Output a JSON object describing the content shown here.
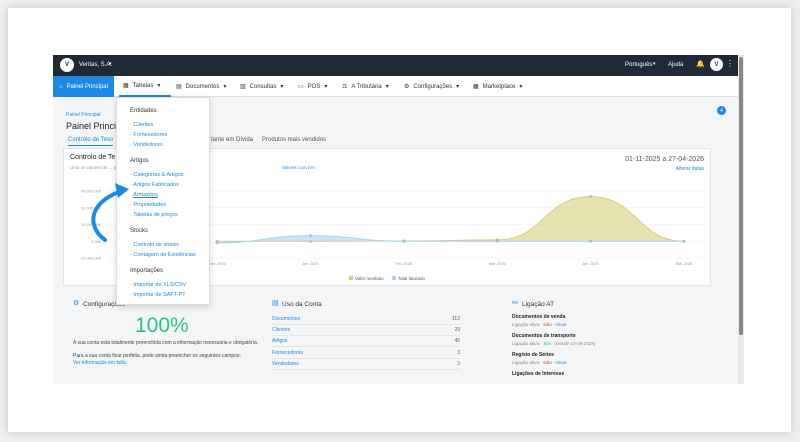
{
  "topbar": {
    "company": "Veritas, S.A.",
    "language": "Português",
    "help": "Ajuda"
  },
  "menu": {
    "items": [
      {
        "label": "Painel Principal"
      },
      {
        "label": "Tabelas"
      },
      {
        "label": "Documentos"
      },
      {
        "label": "Consultas"
      },
      {
        "label": "POS"
      },
      {
        "label": "A Tributária"
      },
      {
        "label": "Configurações"
      },
      {
        "label": "Marketplace"
      }
    ]
  },
  "breadcrumb": "Painel Principal",
  "page_title": "Painel Princip",
  "tabs": [
    "Controlo de Teso",
    "tante em Dívida",
    "Produtos mais vendidos"
  ],
  "chart_card": {
    "title": "Controlo de Te",
    "subtitle": "Uma vs valores do ... pagos e o valor total faturado.",
    "subtitle_link": "Valores com IVA",
    "date_range": "01-11-2025 a 27-04-2026",
    "change_dates": "Alterar datas",
    "legend": [
      "Valor recebido",
      "Total faturado"
    ]
  },
  "chart_data": {
    "type": "area",
    "categories": [
      "Dez 2025",
      "Jan 2026",
      "Fev 2026",
      "Mar 2026",
      "Abr 2026",
      "Mai 2026"
    ],
    "y_ticks": [
      "45.000,00€",
      "30.000,00€",
      "15.000,00€",
      "0,00€",
      "-15.000,00€"
    ],
    "ylim": [
      -15000,
      45000
    ],
    "series": [
      {
        "name": "Valor recebido",
        "color": "#d6cf7a",
        "values": [
          0,
          0,
          200,
          1200,
          40000,
          0
        ]
      },
      {
        "name": "Total faturado",
        "color": "#a9d3ec",
        "values": [
          -1500,
          5000,
          0,
          0,
          0,
          0
        ]
      }
    ]
  },
  "dropdown": {
    "groups": [
      {
        "title": "Entidades",
        "items": [
          "Clientes",
          "Fornecedores",
          "Vendedores"
        ]
      },
      {
        "title": "Artigos",
        "items": [
          "Categorias & Artigos",
          "Artigos Fabricados",
          "Armazéns",
          "Propriedades",
          "Tabelas de preços"
        ]
      },
      {
        "title": "Stocks",
        "items": [
          "Controlo de stocks",
          "Contagem de Existências"
        ]
      },
      {
        "title": "Importações",
        "items": [
          "Importar de XLS/CSV",
          "Importar de SAFT-PT"
        ]
      }
    ]
  },
  "config_card": {
    "title": "Configurações",
    "percent": "100%",
    "text1": "A sua conta está totalmente preenchida com a informação necessária e obrigatória.",
    "text2": "Para a sua conta ficar perfeita, pode ainda preencher os seguintes campos:",
    "link": "Ver informação em falta"
  },
  "usage_card": {
    "title": "Uso da Conta",
    "rows": [
      {
        "label": "Documentos",
        "value": "112"
      },
      {
        "label": "Clientes",
        "value": "29"
      },
      {
        "label": "Artigos",
        "value": "45"
      },
      {
        "label": "Fornecedores",
        "value": "3"
      },
      {
        "label": "Vendedores",
        "value": "3"
      }
    ]
  },
  "at_card": {
    "title": "Ligação AT",
    "sections": [
      {
        "title": "Documentos de venda",
        "prefix": "Ligação ativa:",
        "status": "Não",
        "action": "Ativar",
        "note": ""
      },
      {
        "title": "Documentos de transporte",
        "prefix": "Ligação ativa:",
        "status": "Sim",
        "action": "",
        "note": "(Desde 10-09-2025)"
      },
      {
        "title": "Registo de Séries",
        "prefix": "Ligação ativa:",
        "status": "Não",
        "action": "Ativar",
        "note": ""
      },
      {
        "title": "Ligações de Interesse",
        "prefix": "",
        "status": "",
        "action": "",
        "note": ""
      }
    ]
  },
  "colors": {
    "accent": "#1e88e5",
    "topbar": "#1f2a36",
    "success": "#2ec27e",
    "danger": "#e53935"
  }
}
